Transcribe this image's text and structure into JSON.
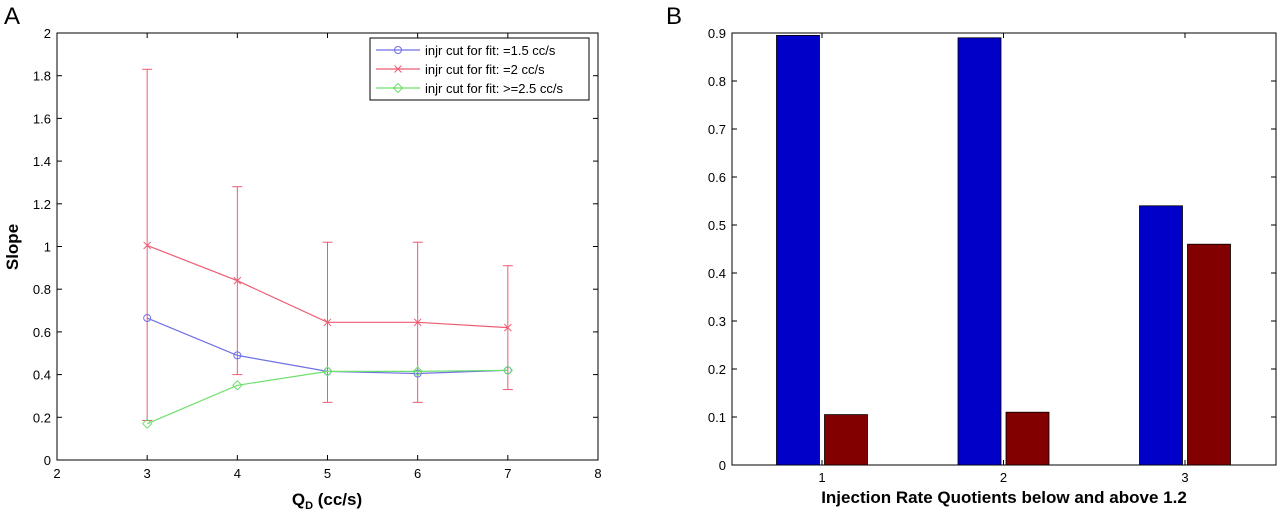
{
  "chart_data": [
    {
      "panel_label": "A",
      "type": "line",
      "xlabel": "Q",
      "xlabel_sub": "D",
      "xlabel_suffix": " (cc/s)",
      "ylabel": "Slope",
      "xlim": [
        2,
        8
      ],
      "ylim": [
        0,
        2
      ],
      "xticks": [
        2,
        3,
        4,
        5,
        6,
        7,
        8
      ],
      "yticks": [
        0,
        0.2,
        0.4,
        0.6,
        0.8,
        1,
        1.2,
        1.4,
        1.6,
        1.8,
        2
      ],
      "grid": false,
      "legend_position": "top-right",
      "series": [
        {
          "name": "injr cut for fit: =1.5 cc/s",
          "color": "#6f6fe6",
          "marker": "circle",
          "x": [
            3,
            4,
            5,
            6,
            7
          ],
          "y": [
            0.665,
            0.49,
            0.415,
            0.405,
            0.42
          ]
        },
        {
          "name": "injr cut for fit: =2 cc/s",
          "color": "#ee5c73",
          "marker": "x",
          "x": [
            3,
            4,
            5,
            6,
            7
          ],
          "y": [
            1.005,
            0.84,
            0.645,
            0.645,
            0.62
          ],
          "error_low": [
            0.185,
            0.4,
            0.27,
            0.27,
            0.33
          ],
          "error_high": [
            1.83,
            1.28,
            1.02,
            1.02,
            0.91
          ]
        },
        {
          "name": "injr cut for fit: >=2.5 cc/s",
          "color": "#6ee06e",
          "marker": "diamond",
          "x": [
            3,
            4,
            5,
            6,
            7
          ],
          "y": [
            0.17,
            0.35,
            0.415,
            0.415,
            0.42
          ]
        }
      ]
    },
    {
      "panel_label": "B",
      "type": "bar",
      "xlabel": "Injection Rate Quotients below and above 1.2",
      "ylabel": "",
      "categories": [
        "1",
        "2",
        "3"
      ],
      "ylim": [
        0,
        0.9
      ],
      "yticks": [
        0,
        0.1,
        0.2,
        0.3,
        0.4,
        0.5,
        0.6,
        0.7,
        0.8,
        0.9
      ],
      "grid": false,
      "series": [
        {
          "color": "#0000c8",
          "values": [
            0.895,
            0.89,
            0.54
          ]
        },
        {
          "color": "#820000",
          "values": [
            0.105,
            0.11,
            0.46
          ]
        }
      ]
    }
  ]
}
